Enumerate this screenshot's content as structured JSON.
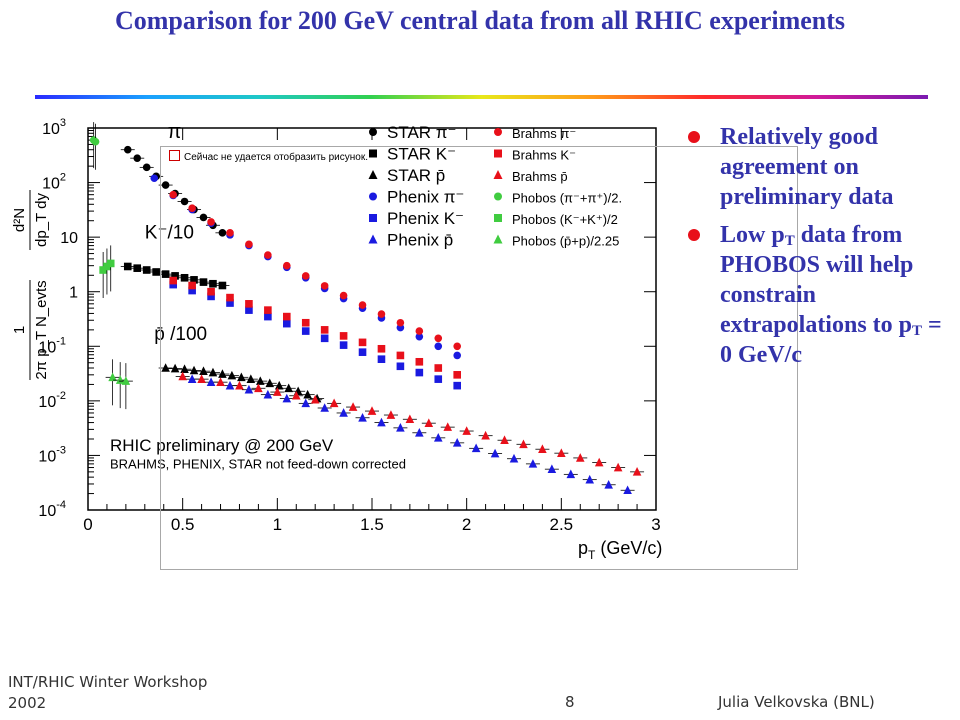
{
  "slide": {
    "title": "Comparison for 200 GeV central data from all RHIC experiments",
    "broken_image_text": "Сейчас не удается отобразить рисунок.",
    "bullets": [
      {
        "parts": [
          "Relatively good agreement on preliminary data"
        ]
      },
      {
        "parts": [
          "Low p",
          "T",
          " data from PHOBOS will help constrain extrapolations to p",
          "T",
          " = 0 GeV/c"
        ]
      }
    ],
    "footer": {
      "left_line1": "INT/RHIC Winter Workshop",
      "left_line2": "2002",
      "page": "8",
      "right": "Julia Velkovska (BNL)"
    },
    "colors": {
      "title": "#3333aa",
      "bullet_dot": "#e8101a",
      "bullet_text": "#3333aa"
    }
  },
  "chart_data": {
    "type": "scatter",
    "title": "",
    "xlabel": "p_T (GeV/c)",
    "ylabel": "1/(2π p_T N_evts) d²N/(dp_T dy)",
    "xlim": [
      0,
      3
    ],
    "ylim": [
      0.0001,
      1000
    ],
    "yscale": "log",
    "x_ticks": [
      "0",
      "0.5",
      "1",
      "1.5",
      "2",
      "2.5",
      "3"
    ],
    "y_ticks": [
      "10^-4",
      "10^-3",
      "10^-2",
      "10^-1",
      "1",
      "10",
      "10^2",
      "10^3"
    ],
    "annotations": [
      "π⁻",
      "K⁻/10",
      "p̄ /100"
    ],
    "note_line1": "RHIC preliminary @ 200 GeV",
    "note_line2": "BRAHMS, PHENIX, STAR not feed-down corrected",
    "legend_position": "top-right",
    "series": [
      {
        "name": "STAR π⁻",
        "color": "#000000",
        "marker": "circle",
        "x": [
          0.21,
          0.26,
          0.31,
          0.36,
          0.41,
          0.46,
          0.51,
          0.56,
          0.61,
          0.66,
          0.71
        ],
        "y": [
          400,
          280,
          190,
          130,
          90,
          63,
          45,
          32,
          23,
          16.5,
          12
        ]
      },
      {
        "name": "STAR K⁻",
        "color": "#000000",
        "marker": "square",
        "x": [
          0.21,
          0.26,
          0.31,
          0.36,
          0.41,
          0.46,
          0.51,
          0.56,
          0.61,
          0.66,
          0.71
        ],
        "y": [
          2.9,
          2.7,
          2.5,
          2.3,
          2.1,
          1.95,
          1.8,
          1.65,
          1.5,
          1.4,
          1.3
        ]
      },
      {
        "name": "STAR p̄",
        "color": "#000000",
        "marker": "triangle",
        "x": [
          0.41,
          0.46,
          0.51,
          0.56,
          0.61,
          0.66,
          0.71,
          0.76,
          0.81,
          0.86,
          0.91,
          0.96,
          1.01,
          1.06,
          1.11,
          1.16,
          1.21
        ],
        "y": [
          0.04,
          0.039,
          0.038,
          0.036,
          0.035,
          0.033,
          0.031,
          0.029,
          0.027,
          0.025,
          0.023,
          0.021,
          0.019,
          0.017,
          0.015,
          0.013,
          0.011
        ]
      },
      {
        "name": "Phenix π⁻",
        "color": "#1a1ae0",
        "marker": "circle",
        "x": [
          0.35,
          0.45,
          0.55,
          0.65,
          0.75,
          0.85,
          0.95,
          1.05,
          1.15,
          1.25,
          1.35,
          1.45,
          1.55,
          1.65,
          1.75,
          1.85,
          1.95
        ],
        "y": [
          120,
          58,
          32,
          18,
          11,
          7,
          4.4,
          2.8,
          1.8,
          1.15,
          0.75,
          0.5,
          0.33,
          0.22,
          0.15,
          0.1,
          0.068
        ]
      },
      {
        "name": "Phenix K⁻",
        "color": "#1a1ae0",
        "marker": "square",
        "x": [
          0.45,
          0.55,
          0.65,
          0.75,
          0.85,
          0.95,
          1.05,
          1.15,
          1.25,
          1.35,
          1.45,
          1.55,
          1.65,
          1.75,
          1.85,
          1.95
        ],
        "y": [
          1.35,
          1.05,
          0.82,
          0.62,
          0.46,
          0.35,
          0.26,
          0.19,
          0.14,
          0.105,
          0.078,
          0.058,
          0.043,
          0.033,
          0.025,
          0.019
        ]
      },
      {
        "name": "Phenix p̄",
        "color": "#1a1ae0",
        "marker": "triangle",
        "x": [
          0.55,
          0.65,
          0.75,
          0.85,
          0.95,
          1.05,
          1.15,
          1.25,
          1.35,
          1.45,
          1.55,
          1.65,
          1.75,
          1.85,
          1.95,
          2.05,
          2.15,
          2.25,
          2.35,
          2.45,
          2.55,
          2.65,
          2.75,
          2.85
        ],
        "y": [
          0.025,
          0.022,
          0.019,
          0.016,
          0.013,
          0.011,
          0.009,
          0.0074,
          0.006,
          0.0049,
          0.004,
          0.0032,
          0.0026,
          0.0021,
          0.0017,
          0.00135,
          0.00108,
          0.00087,
          0.0007,
          0.00056,
          0.00045,
          0.00036,
          0.00029,
          0.00023
        ]
      },
      {
        "name": "Brahms π⁻",
        "color": "#e8101a",
        "marker": "circle",
        "x": [
          0.45,
          0.55,
          0.65,
          0.75,
          0.85,
          0.95,
          1.05,
          1.15,
          1.25,
          1.35,
          1.45,
          1.55,
          1.65,
          1.75,
          1.85,
          1.95
        ],
        "y": [
          60,
          34,
          19,
          12,
          7.4,
          4.7,
          3.0,
          1.95,
          1.28,
          0.85,
          0.57,
          0.39,
          0.27,
          0.19,
          0.14,
          0.1
        ]
      },
      {
        "name": "Brahms K⁻",
        "color": "#e8101a",
        "marker": "square",
        "x": [
          0.45,
          0.55,
          0.65,
          0.75,
          0.85,
          0.95,
          1.05,
          1.15,
          1.25,
          1.35,
          1.45,
          1.55,
          1.65,
          1.75,
          1.85,
          1.95
        ],
        "y": [
          1.6,
          1.3,
          1.0,
          0.78,
          0.6,
          0.46,
          0.35,
          0.27,
          0.2,
          0.155,
          0.118,
          0.09,
          0.068,
          0.052,
          0.04,
          0.03
        ]
      },
      {
        "name": "Brahms p̄",
        "color": "#e8101a",
        "marker": "triangle",
        "x": [
          0.5,
          0.6,
          0.7,
          0.8,
          0.9,
          1.0,
          1.1,
          1.2,
          1.3,
          1.4,
          1.5,
          1.6,
          1.7,
          1.8,
          1.9,
          2.0,
          2.1,
          2.2,
          2.3,
          2.4,
          2.5,
          2.6,
          2.7,
          2.8,
          2.9
        ],
        "y": [
          0.028,
          0.025,
          0.022,
          0.019,
          0.017,
          0.0145,
          0.0124,
          0.0105,
          0.009,
          0.0077,
          0.0065,
          0.0055,
          0.0046,
          0.0039,
          0.0033,
          0.0028,
          0.0023,
          0.0019,
          0.0016,
          0.0013,
          0.0011,
          0.0009,
          0.00074,
          0.0006,
          0.0005
        ]
      },
      {
        "name": "Phobos (π⁻+π⁺)/2.",
        "color": "#40cc40",
        "marker": "circle",
        "x": [
          0.03,
          0.04
        ],
        "y": [
          600,
          560
        ]
      },
      {
        "name": "Phobos (K⁻+K⁺)/2",
        "color": "#40cc40",
        "marker": "square",
        "x": [
          0.08,
          0.1,
          0.12
        ],
        "y": [
          2.5,
          2.9,
          3.3
        ]
      },
      {
        "name": "Phobos (p̄+p)/2.25",
        "color": "#40cc40",
        "marker": "triangle",
        "x": [
          0.13,
          0.17,
          0.2
        ],
        "y": [
          0.027,
          0.024,
          0.023
        ]
      }
    ]
  }
}
